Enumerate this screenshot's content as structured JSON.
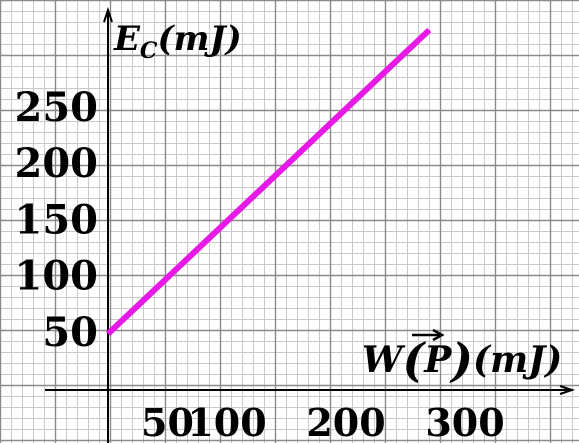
{
  "chart_data": {
    "type": "line",
    "xlabel": "W(P)(mJ)",
    "ylabel": "E_C(mJ)",
    "x_ticks": [
      50,
      100,
      200,
      300
    ],
    "y_ticks": [
      50,
      100,
      150,
      200,
      250
    ],
    "xlim": [
      0,
      380
    ],
    "ylim": [
      0,
      300
    ],
    "grid": true,
    "series": [
      {
        "x": [
          0,
          270
        ],
        "y": [
          50,
          320
        ]
      }
    ],
    "colors": {
      "line": "#e619e6",
      "grid_minor": "#c9c9c9",
      "grid_major": "#8a8a8a",
      "axis": "#000000"
    },
    "ylabel_parts": {
      "main": "E",
      "sub": "C",
      "unit": "(mJ)"
    },
    "xlabel_parts": {
      "main": "W",
      "vector": "P",
      "unit": "(mJ)"
    }
  }
}
